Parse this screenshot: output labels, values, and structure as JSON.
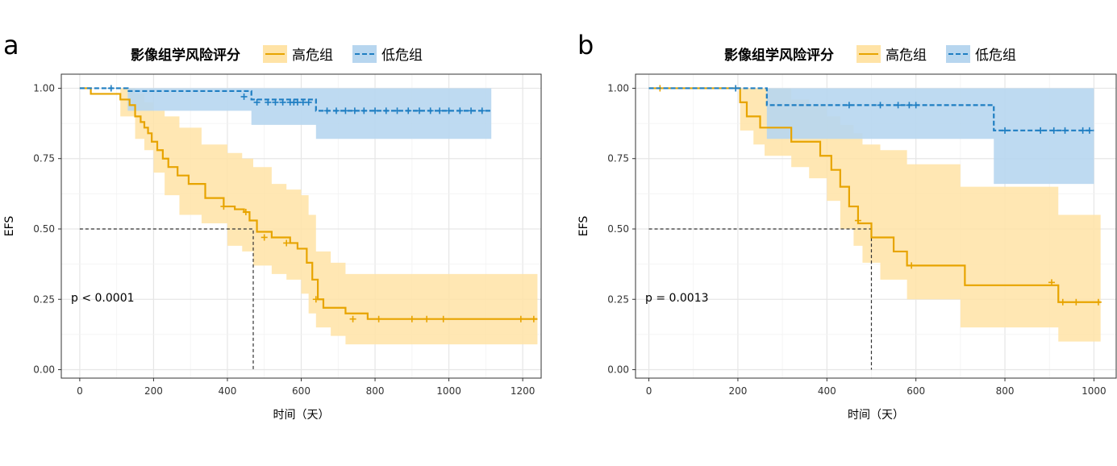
{
  "panels": [
    {
      "letter": "a",
      "legend": {
        "title": "影像组学风险评分",
        "items": [
          {
            "label": "高危组",
            "color": "#E7A400",
            "fill": "#FFE3A6",
            "style": "solid"
          },
          {
            "label": "低危组",
            "color": "#1F7EC2",
            "fill": "#B7D6EF",
            "style": "dashed"
          }
        ]
      },
      "annotation": "p < 0.0001"
    },
    {
      "letter": "b",
      "legend": {
        "title": "影像组学风险评分",
        "items": [
          {
            "label": "高危组",
            "color": "#E7A400",
            "fill": "#FFE3A6",
            "style": "solid"
          },
          {
            "label": "低危组",
            "color": "#1F7EC2",
            "fill": "#B7D6EF",
            "style": "dashed"
          }
        ]
      },
      "annotation": "p = 0.0013"
    }
  ],
  "chart_data": [
    {
      "type": "line",
      "step": true,
      "xlabel": "时间（天）",
      "ylabel": "EFS",
      "xlim": [
        -50,
        1250
      ],
      "ylim": [
        -0.03,
        1.05
      ],
      "xticks": [
        0,
        200,
        400,
        600,
        800,
        1000,
        1200
      ],
      "yticks": [
        0.0,
        0.25,
        0.5,
        0.75,
        1.0
      ],
      "yticklabels": [
        "0.00",
        "0.25",
        "0.50",
        "0.75",
        "1.00"
      ],
      "grid": true,
      "median_line": {
        "y": 0.5,
        "x": 470
      },
      "annotation": "p < 0.0001",
      "series": [
        {
          "name": "高危组",
          "steps": [
            [
              0,
              1.0
            ],
            [
              30,
              0.98
            ],
            [
              110,
              0.96
            ],
            [
              135,
              0.94
            ],
            [
              150,
              0.9
            ],
            [
              165,
              0.88
            ],
            [
              175,
              0.86
            ],
            [
              185,
              0.84
            ],
            [
              195,
              0.81
            ],
            [
              210,
              0.78
            ],
            [
              225,
              0.75
            ],
            [
              240,
              0.72
            ],
            [
              265,
              0.69
            ],
            [
              295,
              0.66
            ],
            [
              340,
              0.61
            ],
            [
              390,
              0.58
            ],
            [
              420,
              0.57
            ],
            [
              445,
              0.56
            ],
            [
              460,
              0.53
            ],
            [
              480,
              0.49
            ],
            [
              520,
              0.47
            ],
            [
              570,
              0.45
            ],
            [
              590,
              0.43
            ],
            [
              615,
              0.38
            ],
            [
              630,
              0.32
            ],
            [
              645,
              0.25
            ],
            [
              660,
              0.22
            ],
            [
              720,
              0.2
            ],
            [
              780,
              0.18
            ],
            [
              1240,
              0.18
            ]
          ],
          "ci_steps": [
            [
              0,
              1.0,
              1.0
            ],
            [
              30,
              0.98,
              0.98
            ],
            [
              110,
              0.9,
              1.0
            ],
            [
              150,
              0.82,
              0.98
            ],
            [
              175,
              0.78,
              0.95
            ],
            [
              200,
              0.7,
              0.92
            ],
            [
              230,
              0.62,
              0.9
            ],
            [
              270,
              0.55,
              0.86
            ],
            [
              330,
              0.52,
              0.8
            ],
            [
              400,
              0.44,
              0.77
            ],
            [
              440,
              0.42,
              0.75
            ],
            [
              470,
              0.37,
              0.72
            ],
            [
              520,
              0.34,
              0.66
            ],
            [
              560,
              0.32,
              0.64
            ],
            [
              600,
              0.27,
              0.62
            ],
            [
              620,
              0.2,
              0.55
            ],
            [
              640,
              0.15,
              0.42
            ],
            [
              680,
              0.12,
              0.38
            ],
            [
              720,
              0.09,
              0.34
            ],
            [
              1240,
              0.09,
              0.34
            ]
          ],
          "censored": [
            [
              390,
              0.58
            ],
            [
              450,
              0.56
            ],
            [
              500,
              0.47
            ],
            [
              560,
              0.45
            ],
            [
              640,
              0.25
            ],
            [
              740,
              0.18
            ],
            [
              810,
              0.18
            ],
            [
              900,
              0.18
            ],
            [
              940,
              0.18
            ],
            [
              985,
              0.18
            ],
            [
              1195,
              0.18
            ],
            [
              1230,
              0.18
            ]
          ]
        },
        {
          "name": "低危组",
          "steps": [
            [
              0,
              1.0
            ],
            [
              130,
              0.99
            ],
            [
              465,
              0.96
            ],
            [
              640,
              0.92
            ],
            [
              1115,
              0.92
            ]
          ],
          "ci_steps": [
            [
              130,
              0.92,
              1.0
            ],
            [
              465,
              0.87,
              1.0
            ],
            [
              640,
              0.82,
              1.0
            ],
            [
              1115,
              0.82,
              1.0
            ]
          ],
          "censored": [
            [
              85,
              1.0
            ],
            [
              445,
              0.97
            ],
            [
              480,
              0.95
            ],
            [
              510,
              0.95
            ],
            [
              530,
              0.95
            ],
            [
              550,
              0.95
            ],
            [
              570,
              0.95
            ],
            [
              580,
              0.95
            ],
            [
              590,
              0.95
            ],
            [
              605,
              0.95
            ],
            [
              620,
              0.95
            ],
            [
              670,
              0.92
            ],
            [
              695,
              0.92
            ],
            [
              720,
              0.92
            ],
            [
              745,
              0.92
            ],
            [
              770,
              0.92
            ],
            [
              800,
              0.92
            ],
            [
              830,
              0.92
            ],
            [
              860,
              0.92
            ],
            [
              890,
              0.92
            ],
            [
              920,
              0.92
            ],
            [
              950,
              0.92
            ],
            [
              975,
              0.92
            ],
            [
              1000,
              0.92
            ],
            [
              1030,
              0.92
            ],
            [
              1060,
              0.92
            ],
            [
              1090,
              0.92
            ]
          ]
        }
      ]
    },
    {
      "type": "line",
      "step": true,
      "xlabel": "时间（天）",
      "ylabel": "EFS",
      "xlim": [
        -30,
        1050
      ],
      "ylim": [
        -0.03,
        1.05
      ],
      "xticks": [
        0,
        200,
        400,
        600,
        800,
        1000
      ],
      "yticks": [
        0.0,
        0.25,
        0.5,
        0.75,
        1.0
      ],
      "yticklabels": [
        "0.00",
        "0.25",
        "0.50",
        "0.75",
        "1.00"
      ],
      "grid": true,
      "median_line": {
        "y": 0.5,
        "x": 500
      },
      "annotation": "p = 0.0013",
      "series": [
        {
          "name": "高危组",
          "steps": [
            [
              0,
              1.0
            ],
            [
              205,
              0.95
            ],
            [
              220,
              0.9
            ],
            [
              250,
              0.86
            ],
            [
              320,
              0.81
            ],
            [
              385,
              0.76
            ],
            [
              410,
              0.71
            ],
            [
              430,
              0.65
            ],
            [
              450,
              0.58
            ],
            [
              470,
              0.52
            ],
            [
              500,
              0.47
            ],
            [
              550,
              0.42
            ],
            [
              580,
              0.37
            ],
            [
              710,
              0.3
            ],
            [
              920,
              0.24
            ],
            [
              1015,
              0.24
            ]
          ],
          "ci_steps": [
            [
              0,
              1.0,
              1.0
            ],
            [
              205,
              0.85,
              1.0
            ],
            [
              235,
              0.8,
              1.0
            ],
            [
              260,
              0.76,
              1.0
            ],
            [
              320,
              0.72,
              0.96
            ],
            [
              360,
              0.68,
              0.94
            ],
            [
              400,
              0.6,
              0.9
            ],
            [
              430,
              0.5,
              0.87
            ],
            [
              460,
              0.44,
              0.84
            ],
            [
              480,
              0.38,
              0.8
            ],
            [
              520,
              0.32,
              0.78
            ],
            [
              580,
              0.25,
              0.73
            ],
            [
              700,
              0.15,
              0.65
            ],
            [
              920,
              0.1,
              0.55
            ],
            [
              1015,
              0.1,
              0.55
            ]
          ],
          "censored": [
            [
              25,
              1.0
            ],
            [
              470,
              0.53
            ],
            [
              590,
              0.37
            ],
            [
              905,
              0.31
            ],
            [
              930,
              0.24
            ],
            [
              960,
              0.24
            ],
            [
              1010,
              0.24
            ]
          ]
        },
        {
          "name": "低危组",
          "steps": [
            [
              0,
              1.0
            ],
            [
              265,
              0.94
            ],
            [
              775,
              0.85
            ],
            [
              1000,
              0.85
            ]
          ],
          "ci_steps": [
            [
              265,
              0.82,
              1.0
            ],
            [
              775,
              0.66,
              1.0
            ],
            [
              1000,
              0.66,
              1.0
            ]
          ],
          "censored": [
            [
              195,
              1.0
            ],
            [
              450,
              0.94
            ],
            [
              520,
              0.94
            ],
            [
              560,
              0.94
            ],
            [
              585,
              0.94
            ],
            [
              600,
              0.94
            ],
            [
              800,
              0.85
            ],
            [
              880,
              0.85
            ],
            [
              910,
              0.85
            ],
            [
              935,
              0.85
            ],
            [
              975,
              0.85
            ],
            [
              990,
              0.85
            ]
          ]
        }
      ]
    }
  ]
}
